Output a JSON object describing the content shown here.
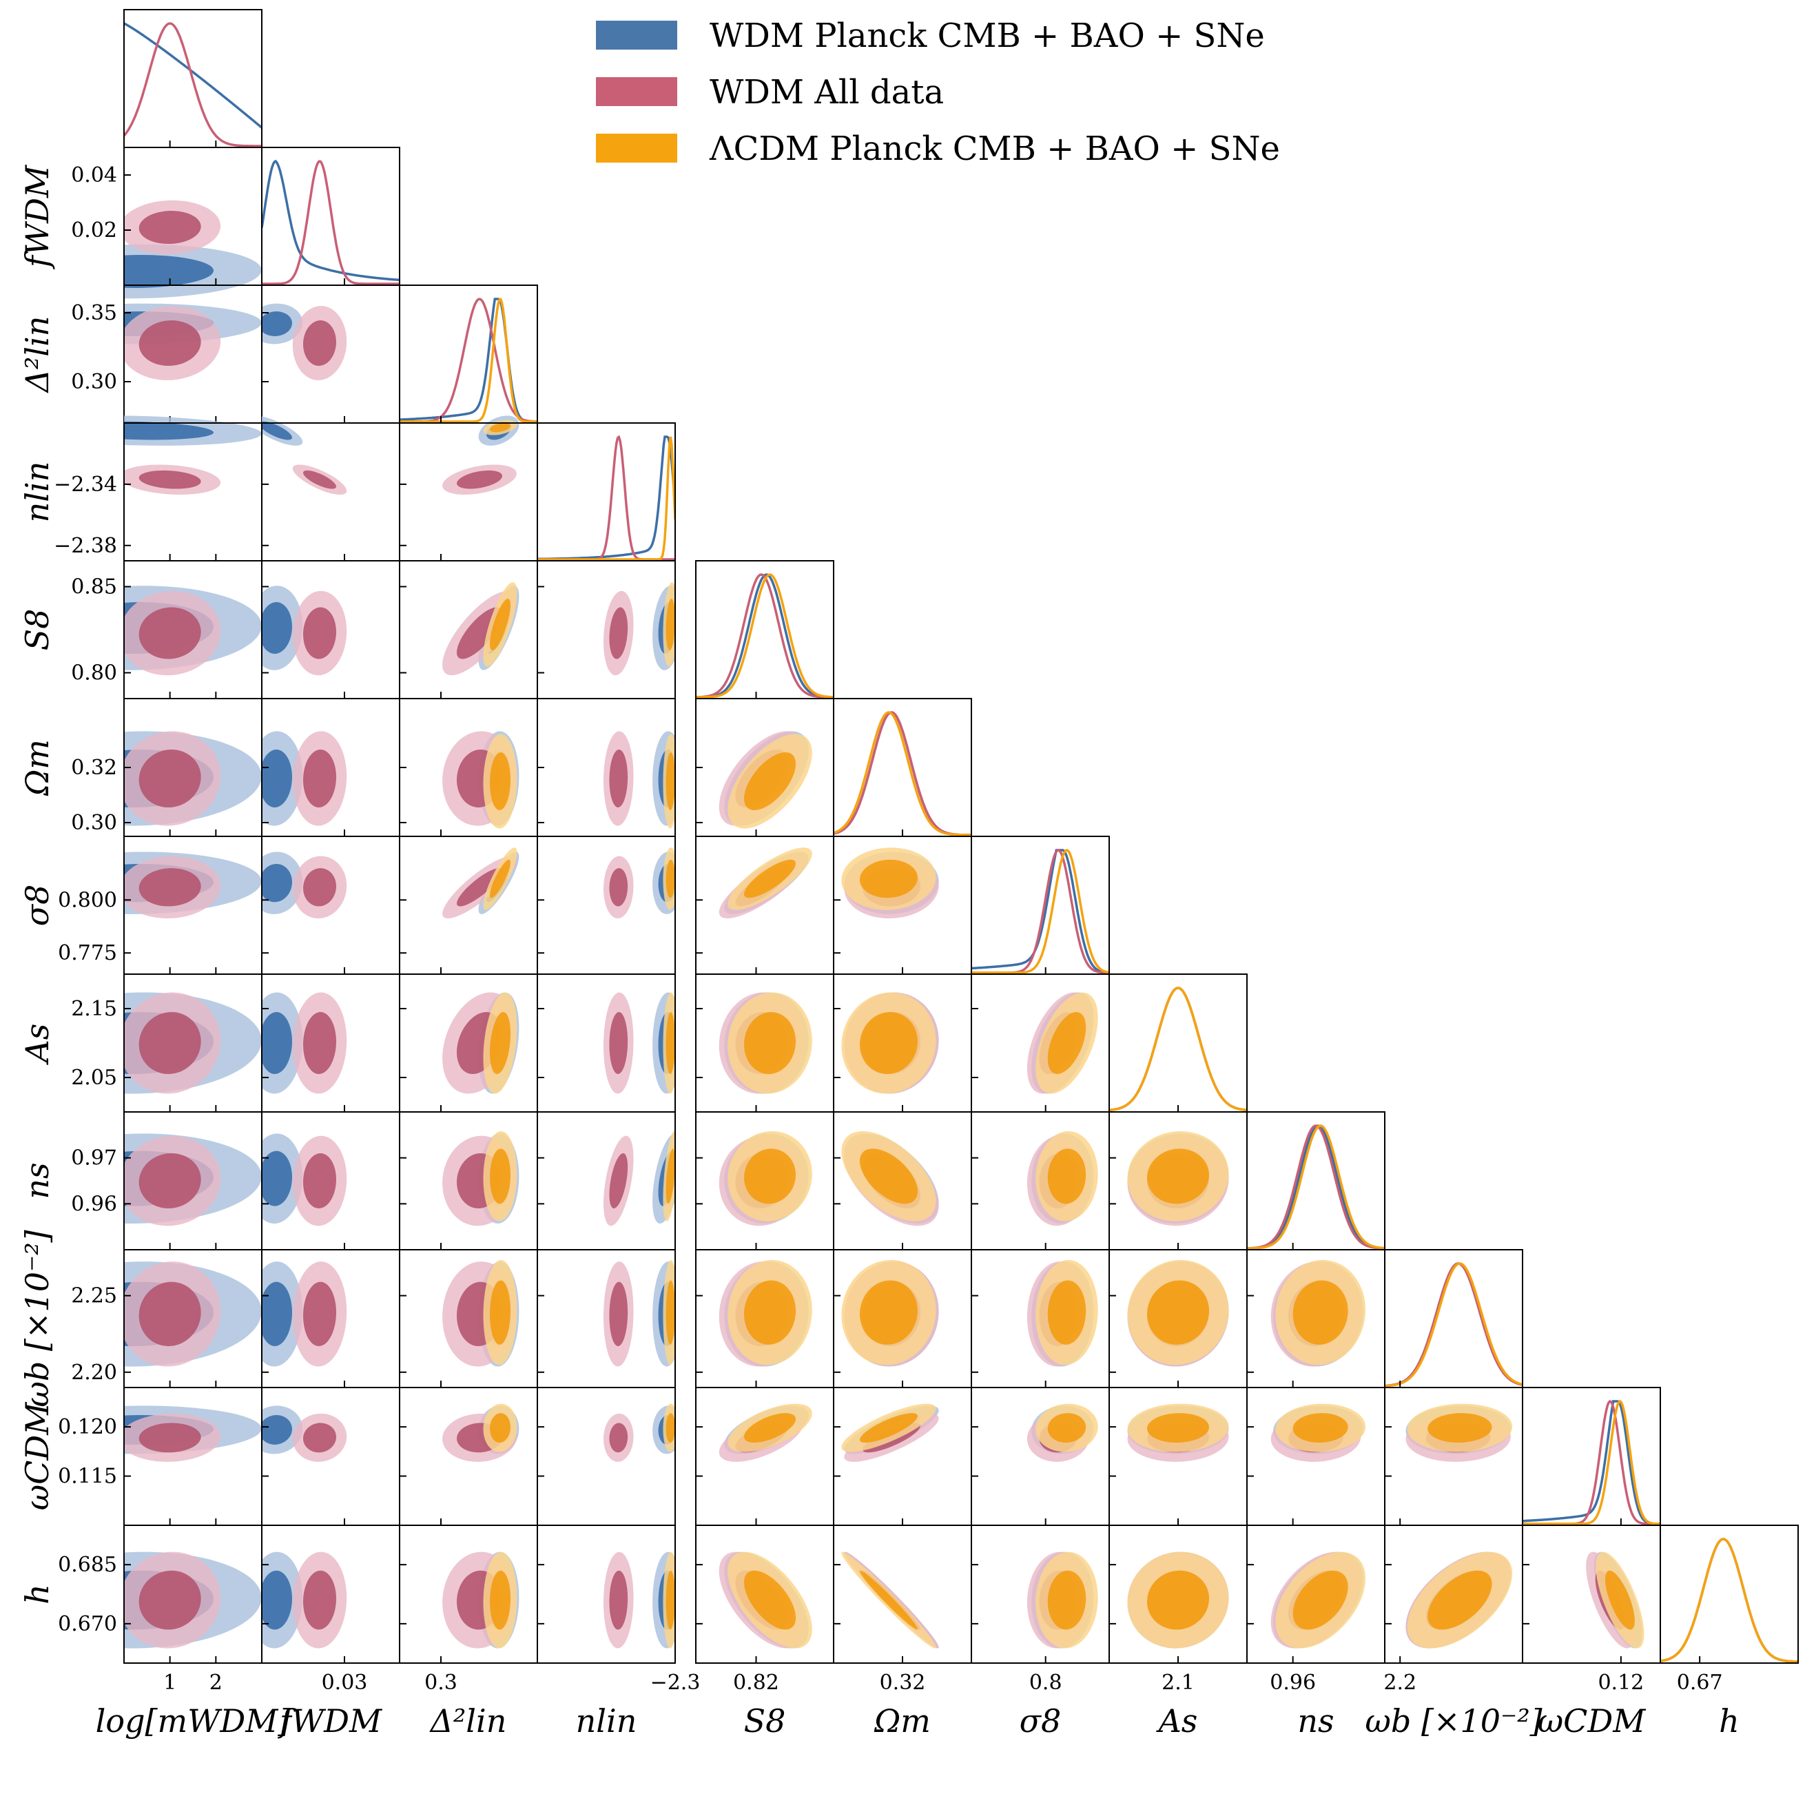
{
  "chart_data": {
    "type": "triangle-corner-plot",
    "title": "",
    "legend": [
      {
        "label": "WDM Planck CMB + BAO + SNe",
        "italic_word": "Planck",
        "color": "#4a77aa"
      },
      {
        "label": "WDM All data",
        "italic_word": "",
        "color": "#c95f75"
      },
      {
        "label": "ΛCDM Planck CMB + BAO + SNe",
        "italic_word": "Planck",
        "color": "#f5a30f"
      }
    ],
    "legend_position": "top-right",
    "parameters": [
      {
        "name": "log[m_WDM]",
        "label": "log[mWDM]",
        "ylabel": "",
        "range": [
          0.0,
          3.0
        ],
        "xticks": [
          "1",
          "2"
        ],
        "xtick_values": [
          1,
          2
        ],
        "yticks": [],
        "ytick_values": [],
        "dist": {
          "blue": [
            0,
            1.0,
            "monotone_down"
          ],
          "red": [
            1.0,
            0.45
          ]
        },
        "series_present": [
          "blue",
          "red"
        ]
      },
      {
        "name": "f_WDM",
        "label": "fWDM",
        "ylabel": "fWDM",
        "range": [
          0.0,
          0.05
        ],
        "xticks": [
          "0.03"
        ],
        "xtick_values": [
          0.03
        ],
        "yticks": [
          "0.04",
          "0.02"
        ],
        "ytick_values": [
          0.04,
          0.02
        ],
        "dist": {
          "blue": [
            0.005,
            0.004,
            "skewed"
          ],
          "red": [
            0.021,
            0.004
          ]
        },
        "series_present": [
          "blue",
          "red"
        ]
      },
      {
        "name": "Delta2_lin",
        "label": "Δ²lin",
        "ylabel": "Δ²lin",
        "range": [
          0.27,
          0.37
        ],
        "xticks": [
          "0.3"
        ],
        "xtick_values": [
          0.3
        ],
        "yticks": [
          "0.35",
          "0.30"
        ],
        "ytick_values": [
          0.35,
          0.3
        ],
        "dist": {
          "blue": [
            0.342,
            0.006,
            "tail_left"
          ],
          "red": [
            0.328,
            0.011
          ],
          "orange": [
            0.343,
            0.005
          ]
        },
        "series_present": [
          "blue",
          "red",
          "orange"
        ]
      },
      {
        "name": "n_lin",
        "label": "nlin",
        "ylabel": "nlin",
        "range": [
          -2.39,
          -2.3
        ],
        "xticks": [
          "−2.3"
        ],
        "xtick_values": [
          -2.3
        ],
        "yticks": [
          "−2.34",
          "−2.38"
        ],
        "ytick_values": [
          -2.34,
          -2.38
        ],
        "dist": {
          "blue": [
            -2.305,
            0.004,
            "tail_left"
          ],
          "red": [
            -2.337,
            0.004
          ],
          "orange": [
            -2.303,
            0.002
          ]
        },
        "series_present": [
          "blue",
          "red",
          "orange"
        ]
      },
      {
        "name": "S_8",
        "label": "S8",
        "ylabel": "S8",
        "range": [
          0.785,
          0.865
        ],
        "xticks": [
          "0.82"
        ],
        "xtick_values": [
          0.82
        ],
        "yticks": [
          "0.85",
          "0.80"
        ],
        "ytick_values": [
          0.85,
          0.8
        ],
        "dist": {
          "blue": [
            0.826,
            0.01
          ],
          "red": [
            0.823,
            0.01
          ],
          "orange": [
            0.828,
            0.01
          ]
        },
        "series_present": [
          "blue",
          "red",
          "orange"
        ]
      },
      {
        "name": "Omega_m",
        "label": "Ωm",
        "ylabel": "Ωm",
        "range": [
          0.295,
          0.345
        ],
        "xticks": [
          "0.32"
        ],
        "xtick_values": [
          0.32
        ],
        "yticks": [
          "0.32",
          "0.30"
        ],
        "ytick_values": [
          0.32,
          0.3
        ],
        "dist": {
          "blue": [
            0.316,
            0.007
          ],
          "red": [
            0.316,
            0.007
          ],
          "orange": [
            0.315,
            0.007
          ]
        },
        "series_present": [
          "blue",
          "red",
          "orange"
        ]
      },
      {
        "name": "sigma_8",
        "label": "σ8",
        "ylabel": "σ8",
        "range": [
          0.765,
          0.83
        ],
        "xticks": [
          "0.8"
        ],
        "xtick_values": [
          0.8
        ],
        "yticks": [
          "0.800",
          "0.775"
        ],
        "ytick_values": [
          0.8,
          0.775
        ],
        "dist": {
          "blue": [
            0.808,
            0.006,
            "tail_left"
          ],
          "red": [
            0.806,
            0.006
          ],
          "orange": [
            0.81,
            0.006
          ]
        },
        "series_present": [
          "blue",
          "red",
          "orange"
        ]
      },
      {
        "name": "A_s",
        "label": "As",
        "ylabel": "As",
        "range": [
          2.0,
          2.2
        ],
        "xticks": [
          "2.1"
        ],
        "xtick_values": [
          2.1
        ],
        "yticks": [
          "2.15",
          "2.05"
        ],
        "ytick_values": [
          2.15,
          2.05
        ],
        "dist": {
          "blue": [
            2.1,
            0.03
          ],
          "red": [
            2.1,
            0.03
          ],
          "orange": [
            2.1,
            0.03
          ]
        },
        "series_present": [
          "blue",
          "red",
          "orange"
        ]
      },
      {
        "name": "n_s",
        "label": "ns",
        "ylabel": "ns",
        "range": [
          0.95,
          0.98
        ],
        "xticks": [
          "0.96"
        ],
        "xtick_values": [
          0.96
        ],
        "yticks": [
          "0.97",
          "0.96"
        ],
        "ytick_values": [
          0.97,
          0.96
        ],
        "dist": {
          "blue": [
            0.9655,
            0.004
          ],
          "red": [
            0.965,
            0.004
          ],
          "orange": [
            0.966,
            0.004
          ]
        },
        "series_present": [
          "blue",
          "red",
          "orange"
        ]
      },
      {
        "name": "omega_b",
        "label": "ωb [×10⁻²]",
        "ylabel": "ωb [×10⁻²]",
        "range": [
          2.19,
          2.28
        ],
        "xticks": [
          "2.2"
        ],
        "xtick_values": [
          2.2
        ],
        "yticks": [
          "2.25",
          "2.20"
        ],
        "ytick_values": [
          2.25,
          2.2
        ],
        "dist": {
          "blue": [
            2.238,
            0.014
          ],
          "red": [
            2.238,
            0.014
          ],
          "orange": [
            2.239,
            0.014
          ]
        },
        "series_present": [
          "blue",
          "red",
          "orange"
        ]
      },
      {
        "name": "omega_CDM",
        "label": "ωCDM",
        "ylabel": "ωCDM",
        "range": [
          0.11,
          0.124
        ],
        "xticks": [
          "0.12"
        ],
        "xtick_values": [
          0.12
        ],
        "yticks": [
          "0.120",
          "0.115"
        ],
        "ytick_values": [
          0.12,
          0.115
        ],
        "dist": {
          "blue": [
            0.1197,
            0.001,
            "tail_left"
          ],
          "red": [
            0.1189,
            0.001
          ],
          "orange": [
            0.1199,
            0.001
          ]
        },
        "series_present": [
          "blue",
          "red",
          "orange"
        ]
      },
      {
        "name": "h",
        "label": "h",
        "ylabel": "h",
        "range": [
          0.66,
          0.695
        ],
        "xticks": [
          "0.67"
        ],
        "xtick_values": [
          0.67
        ],
        "yticks": [
          "0.685",
          "0.670"
        ],
        "ytick_values": [
          0.685,
          0.67
        ],
        "dist": {
          "blue": [
            0.676,
            0.005
          ],
          "red": [
            0.676,
            0.005
          ],
          "orange": [
            0.676,
            0.005
          ]
        },
        "series_present": [
          "blue",
          "red",
          "orange"
        ]
      }
    ],
    "colors": {
      "blue_dark": "#3b6ea8",
      "blue_light": "#a7bfdc",
      "blue_line": "#3d6fa6",
      "red_dark": "#b55570",
      "red_light": "#e8b8c6",
      "red_line": "#c95f75",
      "orange_dark": "#f39c12",
      "orange_light": "#fcd58c",
      "orange_line": "#f5a30f"
    }
  }
}
